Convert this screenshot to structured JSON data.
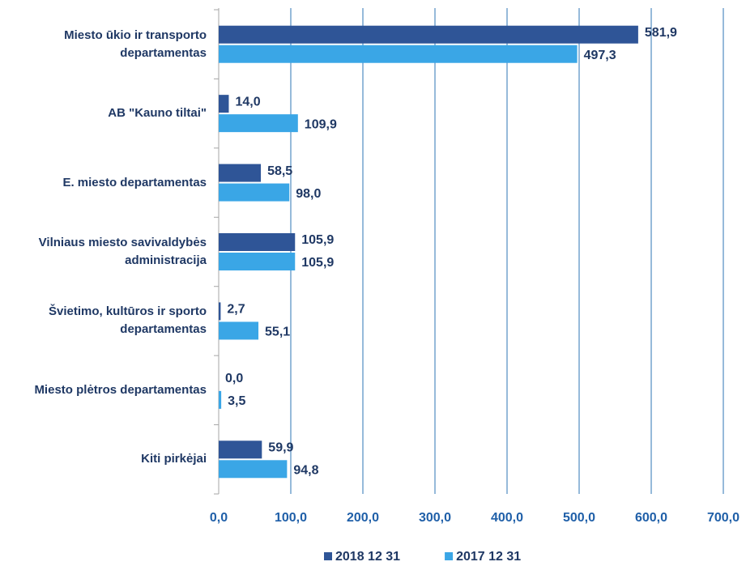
{
  "chart_data": {
    "type": "barh",
    "categories": [
      "Miesto ūkio ir transporto departamentas",
      "AB \"Kauno tiltai\"",
      "E. miesto departamentas",
      "Vilniaus miesto savivaldybės administracija",
      "Švietimo, kultūros ir sporto departamentas",
      "Miesto plėtros departamentas",
      "Kiti pirkėjai"
    ],
    "series": [
      {
        "name": "2018 12 31",
        "color": "#2f5597",
        "values": [
          581.9,
          14.0,
          58.5,
          105.9,
          2.7,
          0.0,
          59.9
        ],
        "value_labels": [
          "581,9",
          "14,0",
          "58,5",
          "105,9",
          "2,7",
          "0,0",
          "59,9"
        ]
      },
      {
        "name": "2017 12 31",
        "color": "#3aa6e6",
        "values": [
          497.3,
          109.9,
          98.0,
          105.9,
          55.1,
          3.5,
          94.8
        ],
        "value_labels": [
          "497,3",
          "109,9",
          "98,0",
          "105,9",
          "55,1",
          "3,5",
          "94,8"
        ]
      }
    ],
    "xlim": [
      0,
      700
    ],
    "xticks": [
      {
        "value": 0,
        "label": "0,0"
      },
      {
        "value": 100,
        "label": "100,0"
      },
      {
        "value": 200,
        "label": "200,0"
      },
      {
        "value": 300,
        "label": "300,0"
      },
      {
        "value": 400,
        "label": "400,0"
      },
      {
        "value": 500,
        "label": "500,0"
      },
      {
        "value": 600,
        "label": "600,0"
      },
      {
        "value": 700,
        "label": "700,0"
      }
    ],
    "grid": true,
    "legend": "bottom"
  }
}
